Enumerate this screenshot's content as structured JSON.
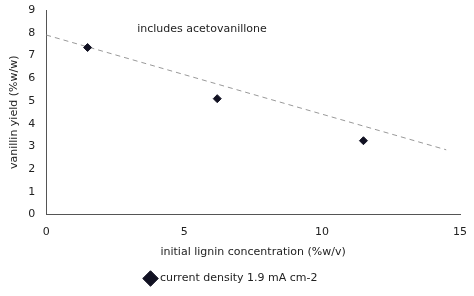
{
  "chart_data": {
    "type": "scatter",
    "xlabel": "initial lignin concentration (%w/v)",
    "ylabel": "vanillin yield (%w/w)",
    "annotation": "includes acetovanillone",
    "xlim": [
      0,
      15
    ],
    "ylim": [
      0,
      9
    ],
    "xticks": [
      0,
      5,
      10,
      15
    ],
    "yticks": [
      0,
      1,
      2,
      3,
      4,
      5,
      6,
      7,
      8,
      9
    ],
    "grid": false,
    "legend": "lower center",
    "series": [
      {
        "name": "current density 1.9 mA cm-2",
        "type": "scatter",
        "color": "#111122",
        "marker": "diamond",
        "x": [
          1.5,
          6.2,
          11.5
        ],
        "values": [
          7.35,
          5.1,
          3.25
        ]
      },
      {
        "type": "line",
        "color": "#999999",
        "line_style": "dashed",
        "x": [
          0.0,
          14.5
        ],
        "values": [
          7.9,
          2.85
        ]
      }
    ]
  }
}
